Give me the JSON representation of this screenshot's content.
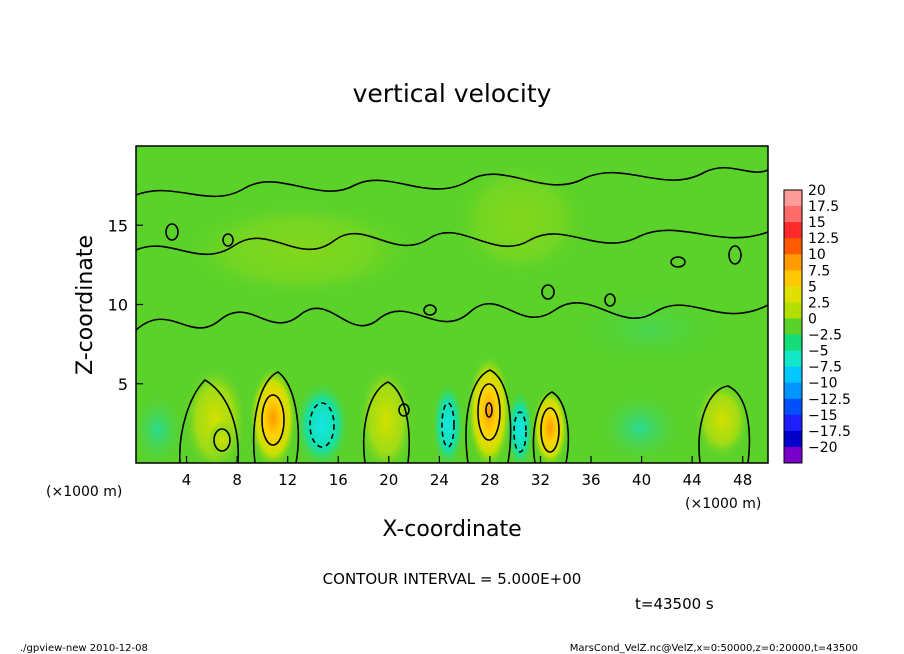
{
  "chart_data": {
    "type": "heatmap",
    "title": "vertical velocity",
    "xlabel": "X-coordinate",
    "ylabel": "Z-coordinate",
    "x_units_left": "(×1000 m)",
    "x_units_right": "(×1000 m)",
    "xlim": [
      0,
      50
    ],
    "ylim": [
      0,
      20
    ],
    "x_ticks": [
      4,
      8,
      12,
      16,
      20,
      24,
      28,
      32,
      36,
      40,
      44,
      48
    ],
    "y_ticks": [
      5,
      10,
      15
    ],
    "colorbar": {
      "labels": [
        "20",
        "17.5",
        "15",
        "12.5",
        "10",
        "7.5",
        "5",
        "2.5",
        "0",
        "-2.5",
        "-5",
        "-7.5",
        "-10",
        "-12.5",
        "-15",
        "-17.5",
        "-20"
      ],
      "colors": [
        "#ff9a9a",
        "#ff6a6a",
        "#ff2a2a",
        "#ff5a00",
        "#ff9a00",
        "#ffc800",
        "#e0e000",
        "#b4e000",
        "#5ad22a",
        "#14dc78",
        "#14e6c8",
        "#00c8ff",
        "#0096ff",
        "#0050ff",
        "#1e1eff",
        "#0000c8",
        "#7800c8"
      ]
    },
    "grid": false,
    "legend": "colorbar-right",
    "contour_interval_label": "CONTOUR INTERVAL = 5.000E+00",
    "time_label": "t=43500 s",
    "footer_left": "./gpview-new   2010-12-08",
    "footer_right": "MarsCond_VelZ.nc@VelZ,x=0:50000,z=0:20000,t=43500"
  }
}
